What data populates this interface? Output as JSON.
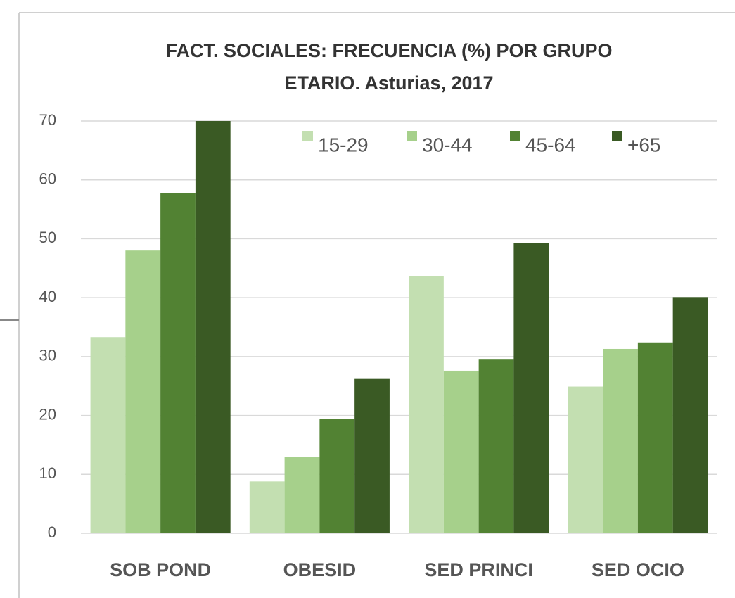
{
  "chart_data": {
    "type": "bar",
    "title": [
      "FACT. SOCIALES: FRECUENCIA (%) POR GRUPO",
      "ETARIO. Asturias, 2017"
    ],
    "categories": [
      "SOB POND",
      "OBESID",
      "SED PRINCI",
      "SED OCIO"
    ],
    "series": [
      {
        "name": "15-29",
        "color": "#c3dfb1",
        "values": [
          33.3,
          8.8,
          43.6,
          24.9
        ]
      },
      {
        "name": "30-44",
        "color": "#a6d08b",
        "values": [
          48.0,
          12.9,
          27.6,
          31.3
        ]
      },
      {
        "name": "45-64",
        "color": "#528233",
        "values": [
          57.8,
          19.4,
          29.6,
          32.4
        ]
      },
      {
        "name": "+65",
        "color": "#3a5a24",
        "values": [
          70.0,
          26.2,
          49.3,
          40.1
        ]
      }
    ],
    "ylim": [
      0,
      70
    ],
    "yticks": [
      0,
      10,
      20,
      30,
      40,
      50,
      60,
      70
    ],
    "grid": true,
    "legend": "top"
  }
}
